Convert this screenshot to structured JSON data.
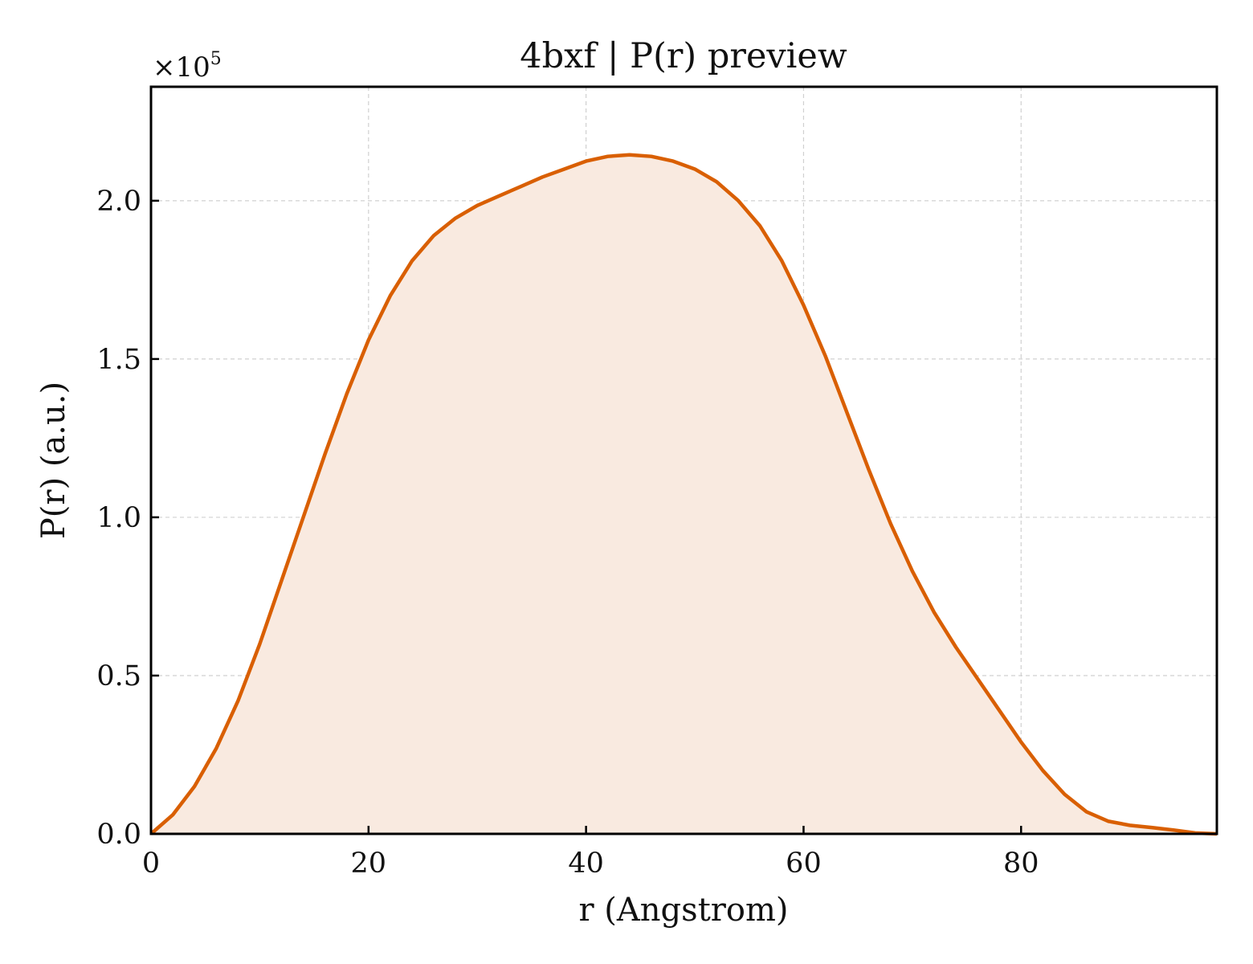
{
  "chart_data": {
    "type": "area",
    "title": "4bxf | P(r) preview",
    "xlabel": "r (Angstrom)",
    "ylabel": "P(r) (a.u.)",
    "y_multiplier_base": "×10",
    "y_multiplier_exponent": "5",
    "xlim": [
      0,
      98
    ],
    "ylim": [
      0,
      2.36
    ],
    "x_ticks": [
      0,
      20,
      40,
      60,
      80
    ],
    "x_tick_labels": [
      "0",
      "20",
      "40",
      "60",
      "80"
    ],
    "y_ticks": [
      0,
      0.5,
      1.0,
      1.5,
      2.0
    ],
    "y_tick_labels": [
      "0.0",
      "0.5",
      "1.0",
      "1.5",
      "2.0"
    ],
    "grid": true,
    "legend": "none",
    "colors": {
      "line": "#d95f02",
      "fill": "#f9eae0"
    },
    "series": [
      {
        "x": [
          0,
          2,
          4,
          6,
          8,
          10,
          12,
          14,
          16,
          18,
          20,
          22,
          24,
          26,
          28,
          30,
          32,
          34,
          36,
          38,
          40,
          42,
          44,
          46,
          48,
          50,
          52,
          54,
          56,
          58,
          60,
          62,
          64,
          66,
          68,
          70,
          72,
          74,
          76,
          78,
          80,
          82,
          84,
          86,
          88,
          90,
          92,
          94,
          96,
          98
        ],
        "values": [
          0,
          0.06,
          0.15,
          0.27,
          0.42,
          0.6,
          0.8,
          1.0,
          1.2,
          1.39,
          1.56,
          1.7,
          1.81,
          1.89,
          1.945,
          1.985,
          2.015,
          2.045,
          2.075,
          2.1,
          2.125,
          2.14,
          2.145,
          2.14,
          2.125,
          2.1,
          2.06,
          2.0,
          1.92,
          1.81,
          1.67,
          1.51,
          1.33,
          1.15,
          0.98,
          0.83,
          0.7,
          0.59,
          0.49,
          0.39,
          0.29,
          0.2,
          0.125,
          0.07,
          0.04,
          0.027,
          0.02,
          0.012,
          0.003,
          0.0
        ]
      }
    ]
  }
}
